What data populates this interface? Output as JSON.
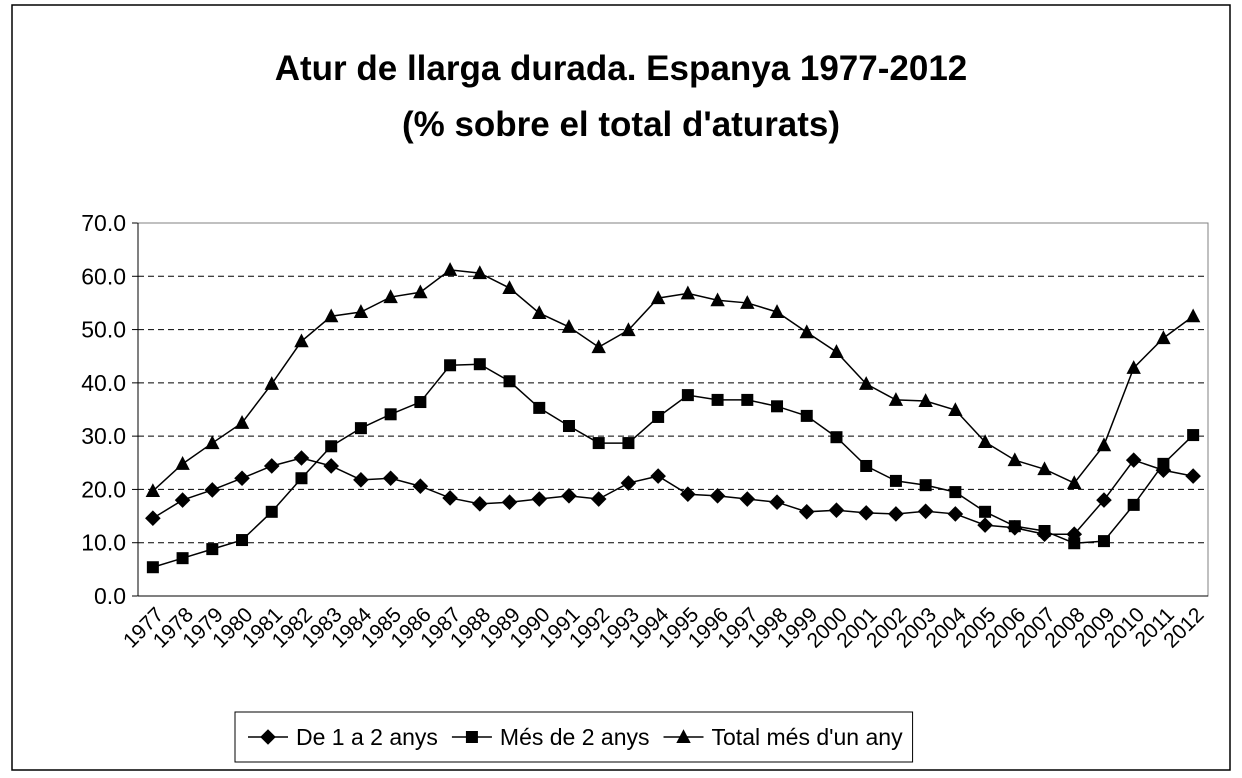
{
  "chart_data": {
    "type": "line",
    "title": "Atur de llarga durada. Espanya 1977-2012",
    "subtitle": "(% sobre el total d'aturats)",
    "categories": [
      "1977",
      "1978",
      "1979",
      "1980",
      "1981",
      "1982",
      "1983",
      "1984",
      "1985",
      "1986",
      "1987",
      "1988",
      "1989",
      "1990",
      "1991",
      "1992",
      "1993",
      "1994",
      "1995",
      "1996",
      "1997",
      "1998",
      "1999",
      "2000",
      "2001",
      "2002",
      "2003",
      "2004",
      "2005",
      "2006",
      "2007",
      "2008",
      "2009",
      "2010",
      "2011",
      "2012"
    ],
    "series": [
      {
        "name": "De 1 a 2 anys",
        "color": "#000000",
        "marker": "diamond",
        "values": [
          14.6,
          18.0,
          19.9,
          22.1,
          24.4,
          25.9,
          24.4,
          21.8,
          22.1,
          20.6,
          18.4,
          17.3,
          17.6,
          18.2,
          18.8,
          18.2,
          21.2,
          22.5,
          19.1,
          18.8,
          18.2,
          17.6,
          15.8,
          16.1,
          15.6,
          15.4,
          15.9,
          15.4,
          13.3,
          12.8,
          11.6,
          11.6,
          18.0,
          25.5,
          23.6,
          22.5
        ]
      },
      {
        "name": "Més de 2 anys",
        "color": "#000000",
        "marker": "square",
        "values": [
          5.4,
          7.1,
          8.8,
          10.5,
          15.8,
          22.1,
          28.1,
          31.5,
          34.1,
          36.4,
          43.3,
          43.5,
          40.3,
          35.3,
          31.9,
          28.7,
          28.7,
          33.6,
          37.7,
          36.8,
          36.8,
          35.6,
          33.8,
          29.8,
          24.4,
          21.6,
          20.8,
          19.5,
          15.8,
          13.1,
          12.2,
          9.9,
          10.3,
          17.1,
          24.8,
          30.2
        ]
      },
      {
        "name": "Total més d'un any",
        "color": "#000000",
        "marker": "triangle",
        "values": [
          19.7,
          24.8,
          28.7,
          32.5,
          39.8,
          47.8,
          52.5,
          53.3,
          56.1,
          57.0,
          61.2,
          60.6,
          57.8,
          53.1,
          50.5,
          46.7,
          49.9,
          55.9,
          56.8,
          55.5,
          55.0,
          53.3,
          49.5,
          45.8,
          39.8,
          36.8,
          36.6,
          34.9,
          28.9,
          25.5,
          23.8,
          21.2,
          28.3,
          42.8,
          48.4,
          52.5
        ]
      }
    ],
    "ylim": [
      0,
      70
    ],
    "yticks": [
      {
        "value": 0,
        "label": "0.0"
      },
      {
        "value": 10,
        "label": "10.0"
      },
      {
        "value": 20,
        "label": "20.0"
      },
      {
        "value": 30,
        "label": "30.0"
      },
      {
        "value": 40,
        "label": "40.0"
      },
      {
        "value": 50,
        "label": "50.0"
      },
      {
        "value": 60,
        "label": "60.0"
      },
      {
        "value": 70,
        "label": "70.0"
      }
    ],
    "grid": true,
    "legend": "bottom"
  }
}
